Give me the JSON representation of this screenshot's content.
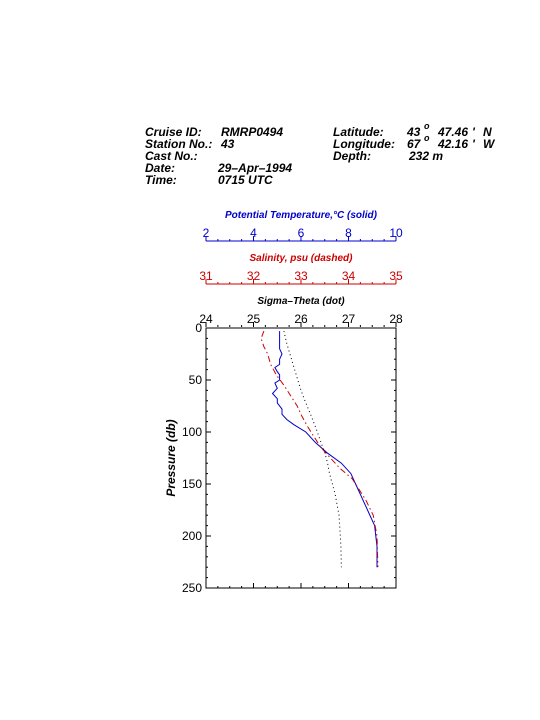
{
  "header": {
    "left": [
      {
        "label": "Cruise ID:",
        "value": "RMRP0494"
      },
      {
        "label": "Station No.:",
        "value": "43"
      },
      {
        "label": "Cast No.:",
        "value": ""
      },
      {
        "label": "Date:",
        "value": "29–Apr–1994"
      },
      {
        "label": "Time:",
        "value": "0715 UTC"
      }
    ],
    "right": {
      "latitude_label": "Latitude:",
      "latitude_deg": "43",
      "latitude_min": "47.46",
      "latitude_hemi": "N",
      "longitude_label": "Longitude:",
      "longitude_deg": "67",
      "longitude_min": "42.16",
      "longitude_hemi": "W",
      "depth_label": "Depth:",
      "depth_value": "232 m",
      "degree_symbol": "o",
      "minute_symbol": "'"
    }
  },
  "colors": {
    "temperature": "#0000cc",
    "salinity": "#cc0000",
    "sigma": "#000000",
    "frame": "#000000"
  },
  "chart_data": {
    "type": "line",
    "ylabel": "Pressure (db)",
    "ylim": [
      0,
      250
    ],
    "y_ticks": [
      0,
      50,
      100,
      150,
      200,
      250
    ],
    "y_inverted": true,
    "grid": false,
    "axes": [
      {
        "key": "temperature",
        "label": "Potential Temperature,°C (solid)",
        "xlim": [
          2,
          10
        ],
        "ticks": [
          2,
          4,
          6,
          8,
          10
        ],
        "color": "#0000cc",
        "linestyle": "solid"
      },
      {
        "key": "salinity",
        "label": "Salinity, psu  (dashed)",
        "xlim": [
          31,
          35
        ],
        "ticks": [
          31,
          32,
          33,
          34,
          35
        ],
        "color": "#cc0000",
        "linestyle": "dashed"
      },
      {
        "key": "sigma",
        "label": "Sigma–Theta (dot)",
        "xlim": [
          24,
          28
        ],
        "ticks": [
          24,
          25,
          26,
          27,
          28
        ],
        "color": "#000000",
        "linestyle": "dotted"
      }
    ],
    "series": [
      {
        "key": "temperature",
        "x": [
          5.1,
          5.1,
          5.1,
          5.2,
          5.1,
          5.1,
          4.9,
          5.0,
          5.1,
          5.1,
          4.9,
          5.0,
          4.8,
          5.0,
          5.0,
          5.2,
          5.2,
          5.4,
          5.7,
          6.2,
          6.6,
          7.1,
          7.7,
          8.1,
          8.3,
          8.5,
          8.8,
          9.1,
          9.2,
          9.2
        ],
        "y": [
          3,
          10,
          20,
          25,
          30,
          35,
          38,
          42,
          45,
          50,
          53,
          58,
          63,
          68,
          72,
          78,
          83,
          88,
          93,
          100,
          110,
          120,
          130,
          140,
          150,
          160,
          175,
          190,
          210,
          230
        ]
      },
      {
        "key": "salinity",
        "x": [
          32.22,
          32.16,
          32.22,
          32.3,
          32.36,
          32.48,
          32.64,
          32.78,
          32.92,
          33.02,
          33.14,
          33.28,
          33.42,
          33.62,
          33.82,
          34.08,
          34.22,
          34.36,
          34.52,
          34.6,
          34.62
        ],
        "y": [
          3,
          10,
          18,
          25,
          35,
          45,
          55,
          65,
          75,
          85,
          95,
          105,
          115,
          125,
          135,
          145,
          155,
          165,
          180,
          200,
          230
        ]
      },
      {
        "key": "sigma",
        "x": [
          25.64,
          25.7,
          25.8,
          25.9,
          26.0,
          26.1,
          26.22,
          26.32,
          26.42,
          26.5,
          26.56,
          26.6,
          26.66,
          26.72,
          26.76,
          26.8,
          26.82,
          26.84,
          26.85
        ],
        "y": [
          3,
          15,
          30,
          45,
          60,
          72,
          85,
          97,
          110,
          120,
          130,
          140,
          150,
          160,
          170,
          180,
          195,
          210,
          230
        ]
      }
    ]
  }
}
